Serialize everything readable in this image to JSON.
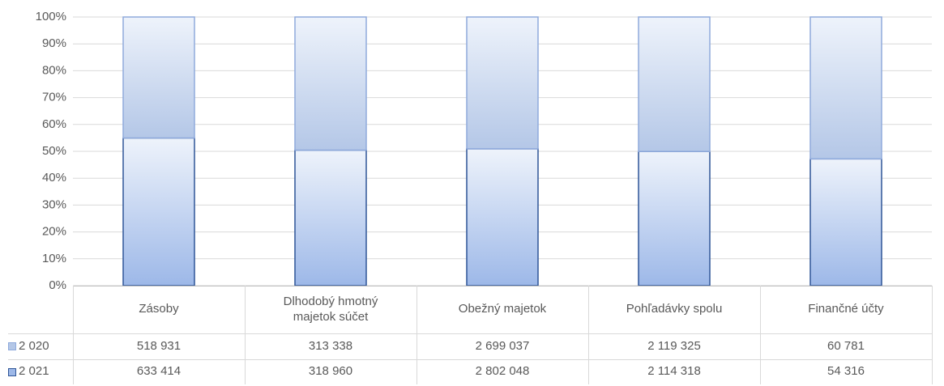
{
  "chart_data": {
    "type": "bar",
    "stack": "percent",
    "categories": [
      "Zásoby",
      "Dlhodobý hmotný majetok súčet",
      "Obežný majetok",
      "Pohľadávky spolu",
      "Finančné účty"
    ],
    "series": [
      {
        "name": "2 020",
        "color": "#b4c7e7",
        "border": "#8faadc",
        "values": [
          518931,
          313338,
          2699037,
          2119325,
          60781
        ],
        "value_labels": [
          "518 931",
          "313 338",
          "2 699 037",
          "2 119 325",
          "60 781"
        ]
      },
      {
        "name": "2 021",
        "color": "#9db8e8",
        "border": "#2f5597",
        "values": [
          633414,
          318960,
          2802048,
          2114318,
          54316
        ],
        "value_labels": [
          "633 414",
          "318 960",
          "2 802 048",
          "2 114 318",
          "54 316"
        ]
      }
    ],
    "ylim": [
      0,
      100
    ],
    "yticks": [
      {
        "value": 0,
        "label": "0%"
      },
      {
        "value": 10,
        "label": "10%"
      },
      {
        "value": 20,
        "label": "20%"
      },
      {
        "value": 30,
        "label": "30%"
      },
      {
        "value": 40,
        "label": "40%"
      },
      {
        "value": 50,
        "label": "50%"
      },
      {
        "value": 60,
        "label": "60%"
      },
      {
        "value": 70,
        "label": "70%"
      },
      {
        "value": 80,
        "label": "80%"
      },
      {
        "value": 90,
        "label": "90%"
      },
      {
        "value": 100,
        "label": "100%"
      }
    ],
    "grid": true,
    "data_table": true
  }
}
